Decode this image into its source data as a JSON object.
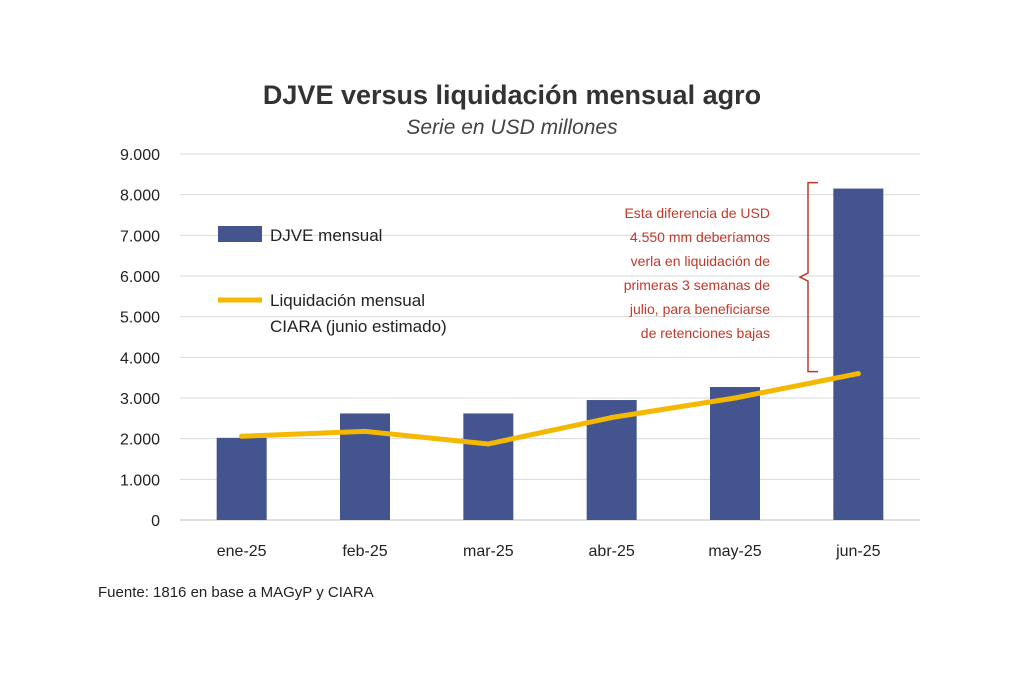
{
  "chart_data": {
    "type": "bar",
    "title": "DJVE versus liquidación mensual agro",
    "subtitle": "Serie en USD millones",
    "categories": [
      "ene-25",
      "feb-25",
      "mar-25",
      "abr-25",
      "may-25",
      "jun-25"
    ],
    "ylim": [
      0,
      9000
    ],
    "yticks": [
      0,
      1000,
      2000,
      3000,
      4000,
      5000,
      6000,
      7000,
      8000,
      9000
    ],
    "ytick_labels": [
      "0",
      "1.000",
      "2.000",
      "3.000",
      "4.000",
      "5.000",
      "6.000",
      "7.000",
      "8.000",
      "9.000"
    ],
    "grid": true,
    "legend_placement": "left",
    "series": [
      {
        "name": "DJVE mensual",
        "type": "bar",
        "color": "#44548f",
        "values": [
          2020,
          2620,
          2620,
          2950,
          3270,
          8150
        ]
      },
      {
        "name": "Liquidación mensual CIARA (junio estimado)",
        "name_lines": [
          "Liquidación mensual",
          "CIARA (junio estimado)"
        ],
        "type": "line",
        "color": "#f5b800",
        "values": [
          2060,
          2180,
          1870,
          2520,
          3000,
          3600
        ]
      }
    ],
    "annotation": {
      "color": "#c0392b",
      "lines": [
        "Esta diferencia de USD",
        "4.550 mm deberíamos",
        "verla en liquidación de",
        "primeras 3 semanas de",
        "julio, para beneficiarse",
        "de retenciones bajas"
      ],
      "range": [
        3600,
        8150
      ]
    }
  },
  "source": "Fuente: 1816 en base a MAGyP y CIARA"
}
